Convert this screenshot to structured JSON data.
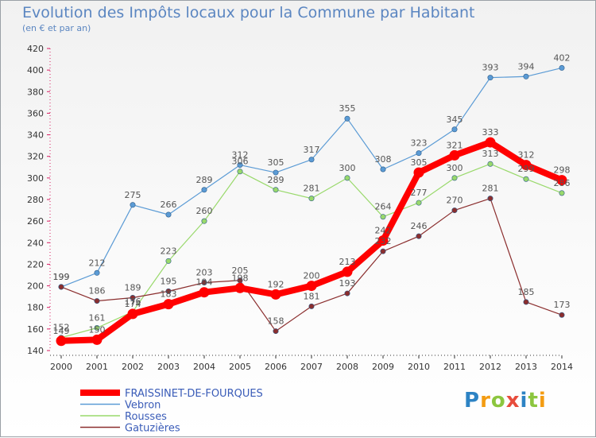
{
  "title": "Evolution des Impôts locaux pour la Commune par Habitant",
  "subtitle": "(en € et par an)",
  "logo": {
    "text": "Proxiti",
    "letters": [
      {
        "ch": "P",
        "color": "#2d83c4"
      },
      {
        "ch": "r",
        "color": "#f39c12"
      },
      {
        "ch": "o",
        "color": "#8cc63f"
      },
      {
        "ch": "x",
        "color": "#e74c3c"
      },
      {
        "ch": "i",
        "color": "#2d83c4"
      },
      {
        "ch": "t",
        "color": "#8cc63f"
      },
      {
        "ch": "i",
        "color": "#f39c12"
      }
    ]
  },
  "chart_data": {
    "type": "line",
    "title": "Evolution des Impôts locaux pour la Commune par Habitant",
    "ylabel": "(en € et par an)",
    "xlabel": "",
    "ylim": [
      140,
      420
    ],
    "ytick_step": 20,
    "grid": false,
    "legend_position": "bottom-left",
    "x": [
      "2000",
      "2001",
      "2002",
      "2003",
      "2004",
      "2005",
      "2006",
      "2007",
      "2008",
      "2009",
      "2010",
      "2011",
      "2012",
      "2013",
      "2014"
    ],
    "series": [
      {
        "name": "FRAISSINET-DE-FOURQUES",
        "color": "#ff0000",
        "emphasis": true,
        "values": [
          149,
          150,
          174,
          183,
          194,
          198,
          192,
          200,
          213,
          242,
          305,
          321,
          333,
          312,
          298
        ]
      },
      {
        "name": "Vebron",
        "color": "#5b9bd5",
        "emphasis": false,
        "values": [
          199,
          212,
          275,
          266,
          289,
          312,
          305,
          317,
          355,
          308,
          323,
          345,
          393,
          394,
          402
        ]
      },
      {
        "name": "Rousses",
        "color": "#99d96b",
        "emphasis": false,
        "values": [
          152,
          161,
          176,
          223,
          260,
          306,
          289,
          281,
          300,
          264,
          277,
          300,
          313,
          299,
          286
        ]
      },
      {
        "name": "Gatuzières",
        "color": "#8b2e2e",
        "emphasis": false,
        "values": [
          199,
          186,
          189,
          195,
          203,
          205,
          158,
          181,
          193,
          232,
          246,
          270,
          281,
          185,
          173
        ]
      }
    ]
  }
}
